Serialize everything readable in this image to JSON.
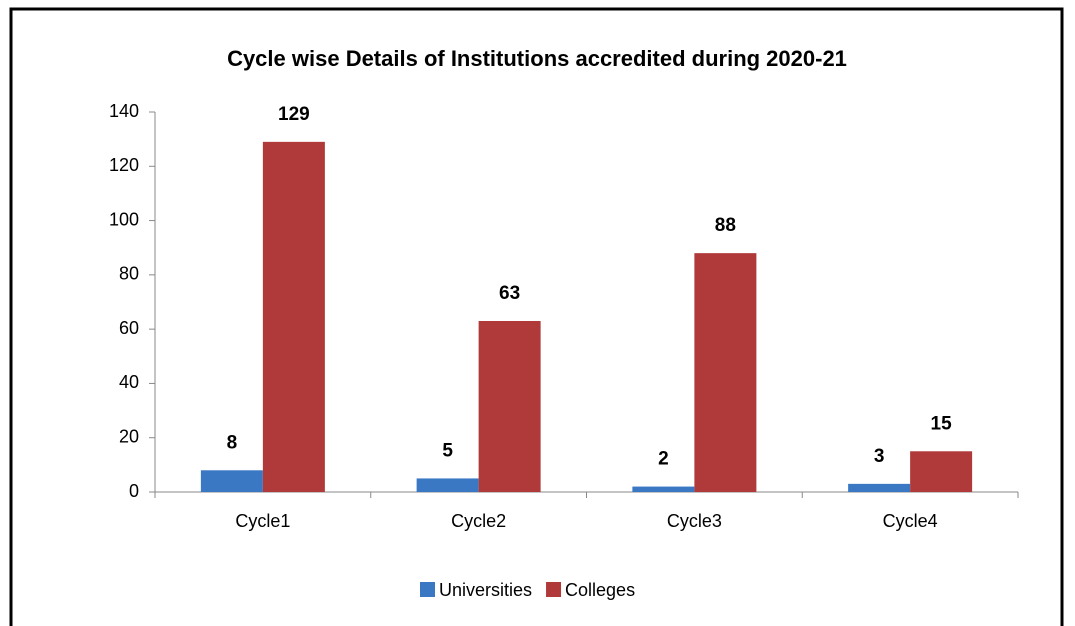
{
  "chart_data": {
    "type": "bar",
    "title": "Cycle wise Details of Institutions accredited during 2020-21",
    "categories": [
      "Cycle1",
      "Cycle2",
      "Cycle3",
      "Cycle4"
    ],
    "series": [
      {
        "name": "Universities",
        "color": "#3b78c4",
        "values": [
          8,
          5,
          2,
          3
        ]
      },
      {
        "name": "Colleges",
        "color": "#b03a3a",
        "values": [
          129,
          63,
          88,
          15
        ]
      }
    ],
    "ylim": [
      0,
      140
    ],
    "yticks": [
      0,
      20,
      40,
      60,
      80,
      100,
      120,
      140
    ],
    "legend": "bottom"
  }
}
